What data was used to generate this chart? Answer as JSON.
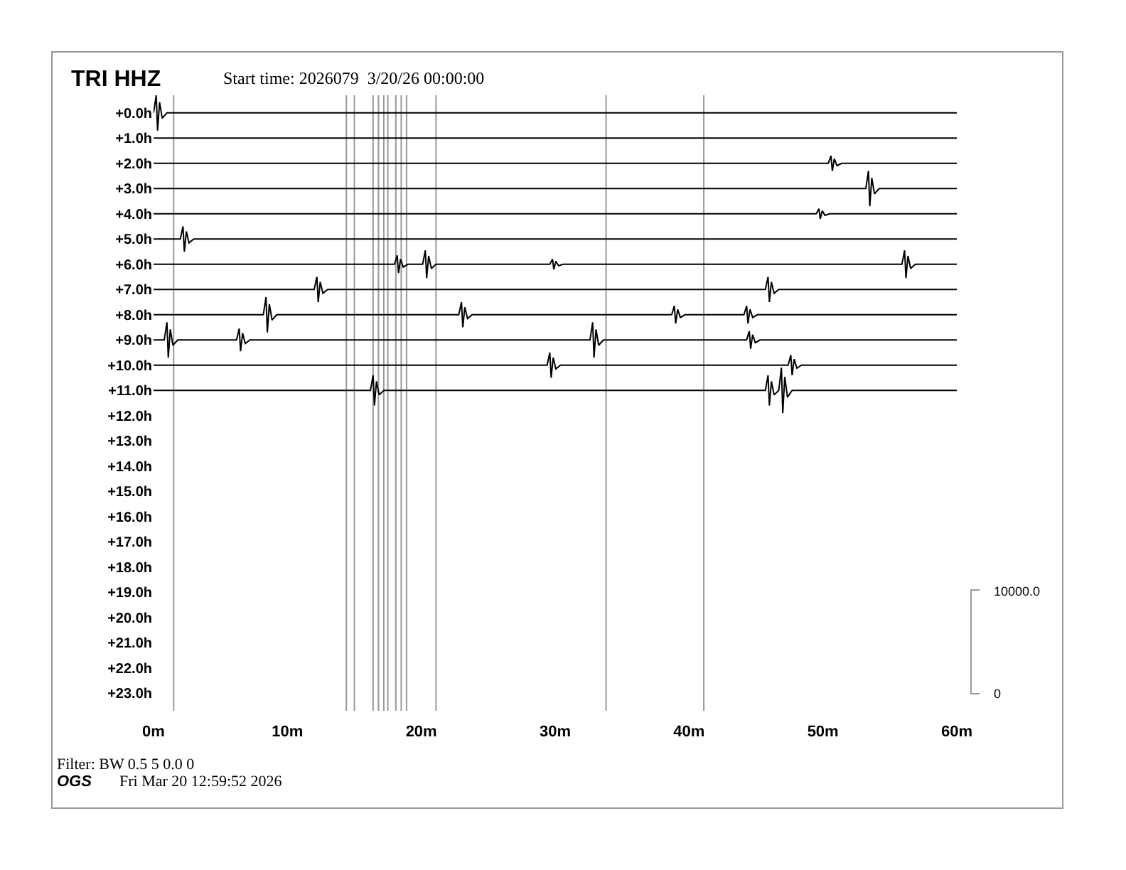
{
  "chart_data": {
    "type": "line",
    "title": "TRI HHZ",
    "subtitle": "Start time: 2026079  3/20/26 00:00:00",
    "annotations": [
      "10000.0",
      "0",
      "Filter: BW 0.5 5 0.0 0",
      "OGS",
      "Fri Mar 20 12:59:52 2026"
    ],
    "xlim": [
      0,
      60
    ],
    "xticks": [
      {
        "value": 0,
        "label": "0m"
      },
      {
        "value": 10,
        "label": "10m"
      },
      {
        "value": 20,
        "label": "20m"
      },
      {
        "value": 30,
        "label": "30m"
      },
      {
        "value": 40,
        "label": "40m"
      },
      {
        "value": 50,
        "label": "50m"
      },
      {
        "value": 60,
        "label": "60m"
      }
    ],
    "ylim": [
      23.7,
      -0.7
    ],
    "yticks": [
      {
        "value": 0,
        "label": "+0.0h"
      },
      {
        "value": 1,
        "label": "+1.0h"
      },
      {
        "value": 2,
        "label": "+2.0h"
      },
      {
        "value": 3,
        "label": "+3.0h"
      },
      {
        "value": 4,
        "label": "+4.0h"
      },
      {
        "value": 5,
        "label": "+5.0h"
      },
      {
        "value": 6,
        "label": "+6.0h"
      },
      {
        "value": 7,
        "label": "+7.0h"
      },
      {
        "value": 8,
        "label": "+8.0h"
      },
      {
        "value": 9,
        "label": "+9.0h"
      },
      {
        "value": 10,
        "label": "+10.0h"
      },
      {
        "value": 11,
        "label": "+11.0h"
      },
      {
        "value": 12,
        "label": "+12.0h"
      },
      {
        "value": 13,
        "label": "+13.0h"
      },
      {
        "value": 14,
        "label": "+14.0h"
      },
      {
        "value": 15,
        "label": "+15.0h"
      },
      {
        "value": 16,
        "label": "+16.0h"
      },
      {
        "value": 17,
        "label": "+17.0h"
      },
      {
        "value": 18,
        "label": "+18.0h"
      },
      {
        "value": 19,
        "label": "+19.0h"
      },
      {
        "value": 20,
        "label": "+20.0h"
      },
      {
        "value": 21,
        "label": "+21.0h"
      },
      {
        "value": 22,
        "label": "+22.0h"
      },
      {
        "value": 23,
        "label": "+23.0h"
      }
    ],
    "grid": false,
    "marker": "none",
    "line_style": "solid",
    "series": [
      {
        "color": "#000000",
        "x": [
          0,
          0.2,
          0.3,
          0.45,
          0.65,
          1.0,
          60
        ],
        "values": [
          0,
          -0.7,
          0.7,
          -0.42,
          0.21,
          0,
          0
        ]
      },
      {
        "color": "#000000",
        "x": [
          0,
          60
        ],
        "values": [
          1,
          1
        ]
      },
      {
        "color": "#000000",
        "x": [
          0,
          50.4,
          50.6,
          50.7,
          50.85,
          51.05,
          51.4,
          60
        ],
        "values": [
          2,
          2,
          1.7,
          2.3,
          1.82,
          2.09,
          2,
          2
        ]
      },
      {
        "color": "#000000",
        "x": [
          0,
          53.2,
          53.4,
          53.5,
          53.65,
          53.85,
          54.2,
          60
        ],
        "values": [
          3,
          3,
          2.3,
          3.7,
          2.58,
          3.21,
          3,
          3
        ]
      },
      {
        "color": "#000000",
        "x": [
          0,
          49.5,
          49.7,
          49.8,
          49.95,
          50.15,
          50.5,
          60
        ],
        "values": [
          4,
          4,
          3.8,
          4.2,
          3.88,
          4.06,
          4,
          4
        ]
      },
      {
        "color": "#000000",
        "x": [
          0,
          2.0,
          2.2,
          2.3,
          2.45,
          2.65,
          3.0,
          60
        ],
        "values": [
          5,
          5,
          4.5,
          5.5,
          4.7,
          5.15,
          5,
          5
        ]
      },
      {
        "color": "#000000",
        "x": [
          0,
          18.0,
          18.2,
          18.3,
          18.45,
          18.65,
          19.0,
          20.1,
          20.3,
          20.4,
          20.55,
          20.75,
          21.1,
          29.6,
          29.8,
          29.9,
          30.05,
          30.25,
          30.6,
          55.9,
          56.1,
          56.2,
          56.35,
          56.55,
          56.9,
          60
        ],
        "values": [
          6,
          6,
          5.65,
          6.35,
          5.79,
          6.11,
          6,
          6,
          5.45,
          6.55,
          5.67,
          6.17,
          6,
          6,
          5.8,
          6.2,
          5.88,
          6.06,
          6,
          6,
          5.45,
          6.55,
          5.67,
          6.17,
          6,
          6
        ]
      },
      {
        "color": "#000000",
        "x": [
          0,
          12.0,
          12.2,
          12.3,
          12.45,
          12.65,
          13.0,
          45.7,
          45.9,
          46.0,
          46.15,
          46.35,
          46.7,
          60
        ],
        "values": [
          7,
          7,
          6.5,
          7.5,
          6.7,
          7.15,
          7,
          7,
          6.5,
          7.5,
          6.7,
          7.15,
          7,
          7
        ]
      },
      {
        "color": "#000000",
        "x": [
          0,
          8.2,
          8.4,
          8.5,
          8.65,
          8.85,
          9.2,
          22.8,
          23.0,
          23.1,
          23.25,
          23.45,
          23.8,
          38.7,
          38.9,
          39.0,
          39.15,
          39.35,
          39.7,
          44.1,
          44.3,
          44.4,
          44.55,
          44.75,
          45.1,
          60
        ],
        "values": [
          8,
          8,
          7.3,
          8.7,
          7.58,
          8.21,
          8,
          8,
          7.5,
          8.5,
          7.7,
          8.15,
          8,
          8,
          7.65,
          8.35,
          7.79,
          8.11,
          8,
          8,
          7.65,
          8.35,
          7.79,
          8.11,
          8,
          8
        ]
      },
      {
        "color": "#000000",
        "x": [
          0,
          0.8,
          1.0,
          1.1,
          1.25,
          1.45,
          1.8,
          6.2,
          6.4,
          6.5,
          6.65,
          6.85,
          7.2,
          32.6,
          32.8,
          32.9,
          33.05,
          33.25,
          33.6,
          44.3,
          44.5,
          44.6,
          44.75,
          44.95,
          45.3,
          60
        ],
        "values": [
          9,
          9,
          8.3,
          9.7,
          8.58,
          9.21,
          9,
          9,
          8.55,
          9.45,
          8.73,
          9.14,
          9,
          9,
          8.3,
          9.7,
          8.58,
          9.21,
          9,
          9,
          8.65,
          9.35,
          8.79,
          9.11,
          9,
          9
        ]
      },
      {
        "color": "#000000",
        "x": [
          0,
          29.4,
          29.6,
          29.7,
          29.85,
          30.05,
          30.4,
          47.4,
          47.6,
          47.7,
          47.85,
          48.05,
          48.4,
          60
        ],
        "values": [
          10,
          10,
          9.5,
          10.5,
          9.7,
          10.15,
          10,
          10,
          9.6,
          10.4,
          9.76,
          10.12,
          10,
          10
        ]
      },
      {
        "color": "#000000",
        "x": [
          0,
          16.2,
          16.4,
          16.5,
          16.65,
          16.85,
          17.2,
          45.7,
          45.9,
          46.0,
          46.15,
          46.35,
          46.7,
          46.9,
          47.0,
          47.15,
          47.35,
          47.7,
          60
        ],
        "values": [
          11,
          11,
          10.4,
          11.6,
          10.64,
          11.18,
          11,
          11,
          10.4,
          11.6,
          10.64,
          11.18,
          11,
          10.1,
          11.9,
          10.46,
          11.27,
          11,
          11
        ]
      }
    ],
    "ref_lines": [
      {
        "axis": "x",
        "value": 1.5,
        "color": "#999999"
      },
      {
        "axis": "x",
        "value": 14.4,
        "color": "#999999"
      },
      {
        "axis": "x",
        "value": 15.0,
        "color": "#999999"
      },
      {
        "axis": "x",
        "value": 16.4,
        "color": "#999999"
      },
      {
        "axis": "x",
        "value": 16.8,
        "color": "#999999"
      },
      {
        "axis": "x",
        "value": 17.2,
        "color": "#999999"
      },
      {
        "axis": "x",
        "value": 17.5,
        "color": "#999999"
      },
      {
        "axis": "x",
        "value": 18.1,
        "color": "#999999"
      },
      {
        "axis": "x",
        "value": 18.5,
        "color": "#999999"
      },
      {
        "axis": "x",
        "value": 18.9,
        "color": "#999999"
      },
      {
        "axis": "x",
        "value": 21.1,
        "color": "#999999"
      },
      {
        "axis": "x",
        "value": 33.8,
        "color": "#999999"
      },
      {
        "axis": "x",
        "value": 41.1,
        "color": "#999999"
      }
    ]
  }
}
